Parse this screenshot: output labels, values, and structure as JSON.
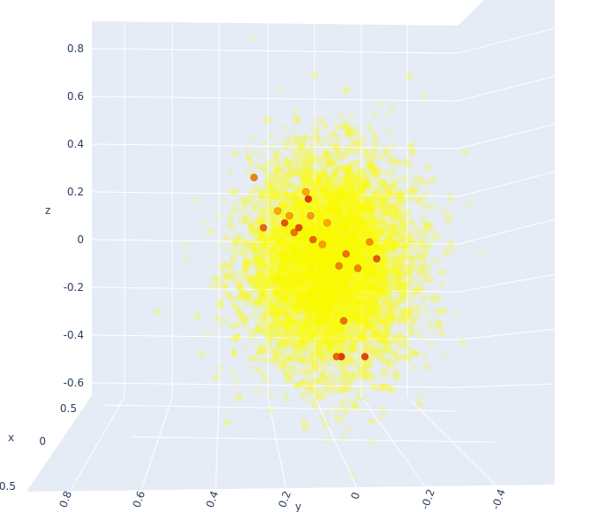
{
  "chart_data": {
    "type": "scatter3d",
    "title": "",
    "axes": {
      "x": {
        "title": "x",
        "tick_labels": [
          "0.5",
          "0",
          "-0.5"
        ],
        "range": [
          -0.5,
          0.5
        ]
      },
      "y": {
        "title": "y",
        "tick_labels": [
          "0.8",
          "0.6",
          "0.4",
          "0.2",
          "0",
          "-0.2",
          "-0.4"
        ],
        "range": [
          -0.45,
          0.85
        ]
      },
      "z": {
        "title": "z",
        "tick_labels": [
          "0.8",
          "0.6",
          "0.4",
          "0.2",
          "0",
          "-0.2",
          "-0.4",
          "-0.6"
        ],
        "range": [
          -0.65,
          0.92
        ]
      }
    },
    "grid": true,
    "legend": "none",
    "colors": {
      "scene_background": "#e5ecf6",
      "grid": "#ffffff",
      "point_low": "#ffff00",
      "point_high": "#ff0000"
    },
    "series": [
      {
        "description": "dense cloud of semi-transparent yellow points centered near y=0.12, z=-0.1",
        "center": {
          "y": 0.12,
          "z": -0.1
        },
        "spread": {
          "y": 0.17,
          "z": 0.22
        },
        "count": 9000
      },
      {
        "description": "highlighted orange/red points",
        "points": [
          {
            "y": 0.44,
            "z": 0.26,
            "v": 0.7
          },
          {
            "y": 0.4,
            "z": 0.05,
            "v": 0.8
          },
          {
            "y": 0.34,
            "z": 0.12,
            "v": 0.5
          },
          {
            "y": 0.31,
            "z": 0.07,
            "v": 0.85
          },
          {
            "y": 0.29,
            "z": 0.1,
            "v": 0.6
          },
          {
            "y": 0.27,
            "z": 0.03,
            "v": 0.75
          },
          {
            "y": 0.25,
            "z": 0.05,
            "v": 0.9
          },
          {
            "y": 0.22,
            "z": 0.2,
            "v": 0.55
          },
          {
            "y": 0.21,
            "z": 0.17,
            "v": 0.95
          },
          {
            "y": 0.2,
            "z": 0.1,
            "v": 0.6
          },
          {
            "y": 0.19,
            "z": 0.0,
            "v": 0.8
          },
          {
            "y": 0.13,
            "z": 0.07,
            "v": 0.5
          },
          {
            "y": 0.08,
            "z": -0.11,
            "v": 0.7
          },
          {
            "y": 0.05,
            "z": -0.06,
            "v": 0.75
          },
          {
            "y": -0.05,
            "z": -0.01,
            "v": 0.65
          },
          {
            "y": -0.08,
            "z": -0.08,
            "v": 0.85
          },
          {
            "y": 0.06,
            "z": -0.34,
            "v": 0.75
          },
          {
            "y": 0.07,
            "z": -0.49,
            "v": 0.95
          },
          {
            "y": 0.09,
            "z": -0.49,
            "v": 0.8
          },
          {
            "y": -0.03,
            "z": -0.49,
            "v": 0.9
          },
          {
            "y": 0.0,
            "z": -0.12,
            "v": 0.7
          },
          {
            "y": 0.15,
            "z": -0.02,
            "v": 0.6
          }
        ]
      }
    ]
  }
}
